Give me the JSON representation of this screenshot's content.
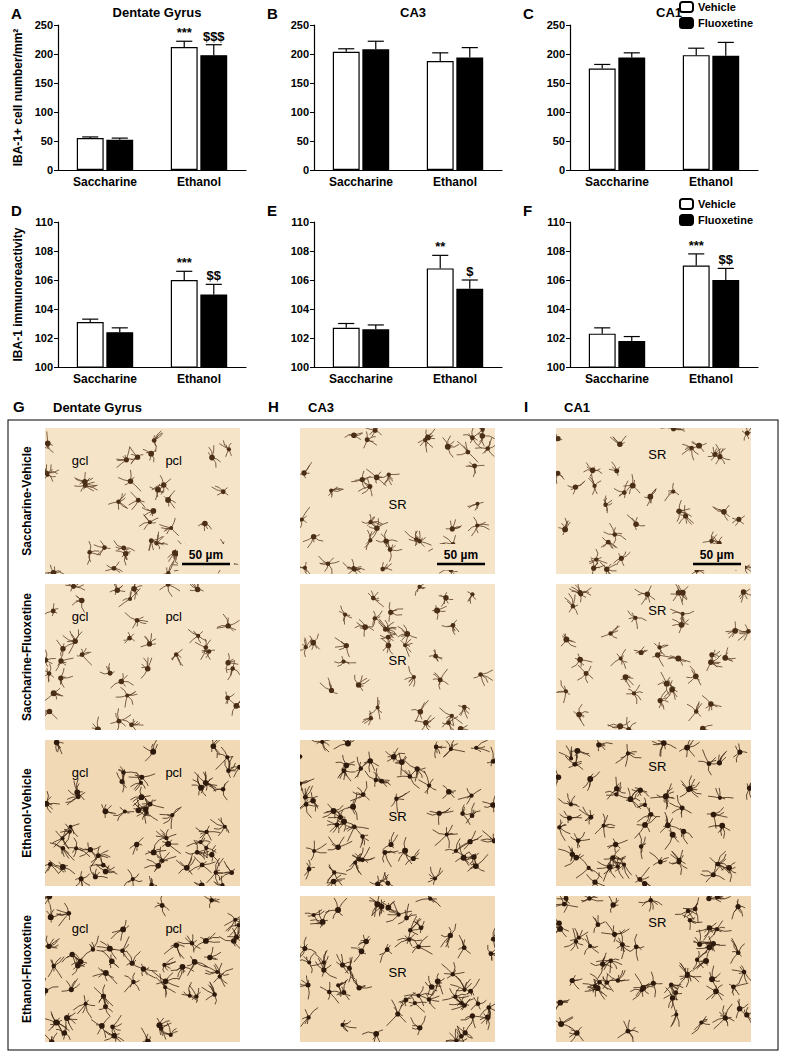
{
  "chart_data": [
    {
      "panel": "A",
      "type": "bar",
      "title": "Dentate Gyrus",
      "ylabel": "IBA-1+ cell number/mm²",
      "categories": [
        "Saccharine",
        "Ethanol"
      ],
      "series": [
        {
          "name": "Vehicle",
          "color": "#ffffff",
          "values": [
            55,
            212
          ],
          "errors": [
            2,
            10
          ]
        },
        {
          "name": "Fluoxetine",
          "color": "#000000",
          "values": [
            52,
            198
          ],
          "errors": [
            3,
            18
          ]
        }
      ],
      "ylim": [
        0,
        250
      ],
      "yticks": [
        0,
        50,
        100,
        150,
        200,
        250
      ],
      "grid": false,
      "annotations": [
        {
          "category": "Ethanol",
          "series": "Vehicle",
          "text": "***"
        },
        {
          "category": "Ethanol",
          "series": "Fluoxetine",
          "text": "$$$"
        }
      ]
    },
    {
      "panel": "B",
      "type": "bar",
      "title": "CA3",
      "categories": [
        "Saccharine",
        "Ethanol"
      ],
      "series": [
        {
          "name": "Vehicle",
          "color": "#ffffff",
          "values": [
            204,
            188
          ],
          "errors": [
            5,
            14
          ]
        },
        {
          "name": "Fluoxetine",
          "color": "#000000",
          "values": [
            208,
            194
          ],
          "errors": [
            14,
            17
          ]
        }
      ],
      "ylim": [
        0,
        250
      ],
      "yticks": [
        0,
        50,
        100,
        150,
        200,
        250
      ],
      "grid": false
    },
    {
      "panel": "C",
      "type": "bar",
      "title": "CA1",
      "categories": [
        "Saccharine",
        "Ethanol"
      ],
      "series": [
        {
          "name": "Vehicle",
          "color": "#ffffff",
          "values": [
            175,
            198
          ],
          "errors": [
            7,
            12
          ]
        },
        {
          "name": "Fluoxetine",
          "color": "#000000",
          "values": [
            194,
            197
          ],
          "errors": [
            8,
            23
          ]
        }
      ],
      "ylim": [
        0,
        250
      ],
      "yticks": [
        0,
        50,
        100,
        150,
        200,
        250
      ],
      "grid": false,
      "legend": "top-right"
    },
    {
      "panel": "D",
      "type": "bar",
      "ylabel": "IBA-1 immunoreactivity",
      "categories": [
        "Saccharine",
        "Ethanol"
      ],
      "series": [
        {
          "name": "Vehicle",
          "color": "#ffffff",
          "values": [
            103.1,
            106.0
          ],
          "errors": [
            0.2,
            0.6
          ]
        },
        {
          "name": "Fluoxetine",
          "color": "#000000",
          "values": [
            102.4,
            105.0
          ],
          "errors": [
            0.3,
            0.7
          ]
        }
      ],
      "ylim": [
        100,
        110
      ],
      "yticks": [
        100,
        102,
        104,
        106,
        108,
        110
      ],
      "grid": false,
      "annotations": [
        {
          "category": "Ethanol",
          "series": "Vehicle",
          "text": "***"
        },
        {
          "category": "Ethanol",
          "series": "Fluoxetine",
          "text": "$$"
        }
      ]
    },
    {
      "panel": "E",
      "type": "bar",
      "categories": [
        "Saccharine",
        "Ethanol"
      ],
      "series": [
        {
          "name": "Vehicle",
          "color": "#ffffff",
          "values": [
            102.7,
            106.8
          ],
          "errors": [
            0.3,
            0.9
          ]
        },
        {
          "name": "Fluoxetine",
          "color": "#000000",
          "values": [
            102.6,
            105.4
          ],
          "errors": [
            0.3,
            0.6
          ]
        }
      ],
      "ylim": [
        100,
        110
      ],
      "yticks": [
        100,
        102,
        104,
        106,
        108,
        110
      ],
      "grid": false,
      "annotations": [
        {
          "category": "Ethanol",
          "series": "Vehicle",
          "text": "**"
        },
        {
          "category": "Ethanol",
          "series": "Fluoxetine",
          "text": "$"
        }
      ]
    },
    {
      "panel": "F",
      "type": "bar",
      "categories": [
        "Saccharine",
        "Ethanol"
      ],
      "series": [
        {
          "name": "Vehicle",
          "color": "#ffffff",
          "values": [
            102.3,
            107.0
          ],
          "errors": [
            0.4,
            0.8
          ]
        },
        {
          "name": "Fluoxetine",
          "color": "#000000",
          "values": [
            101.8,
            106.0
          ],
          "errors": [
            0.3,
            0.8
          ]
        }
      ],
      "ylim": [
        100,
        110
      ],
      "yticks": [
        100,
        102,
        104,
        106,
        108,
        110
      ],
      "grid": false,
      "legend": "top-right",
      "annotations": [
        {
          "category": "Ethanol",
          "series": "Vehicle",
          "text": "***"
        },
        {
          "category": "Ethanol",
          "series": "Fluoxetine",
          "text": "$$"
        }
      ]
    }
  ],
  "images": {
    "columns": [
      {
        "panel": "G",
        "title": "Dentate Gyrus",
        "region_labels": [
          "gcl",
          "pcl"
        ]
      },
      {
        "panel": "H",
        "title": "CA3",
        "region_labels": [
          "SR"
        ]
      },
      {
        "panel": "I",
        "title": "CA1",
        "region_labels": [
          "SR"
        ]
      }
    ],
    "rows": [
      "Saccharine-Vehicle",
      "Saccharine-Fluoxetine",
      "Ethanol-Vehicle",
      "Ethanol-Fluoxetine"
    ],
    "scale_bar": "50 µm"
  }
}
